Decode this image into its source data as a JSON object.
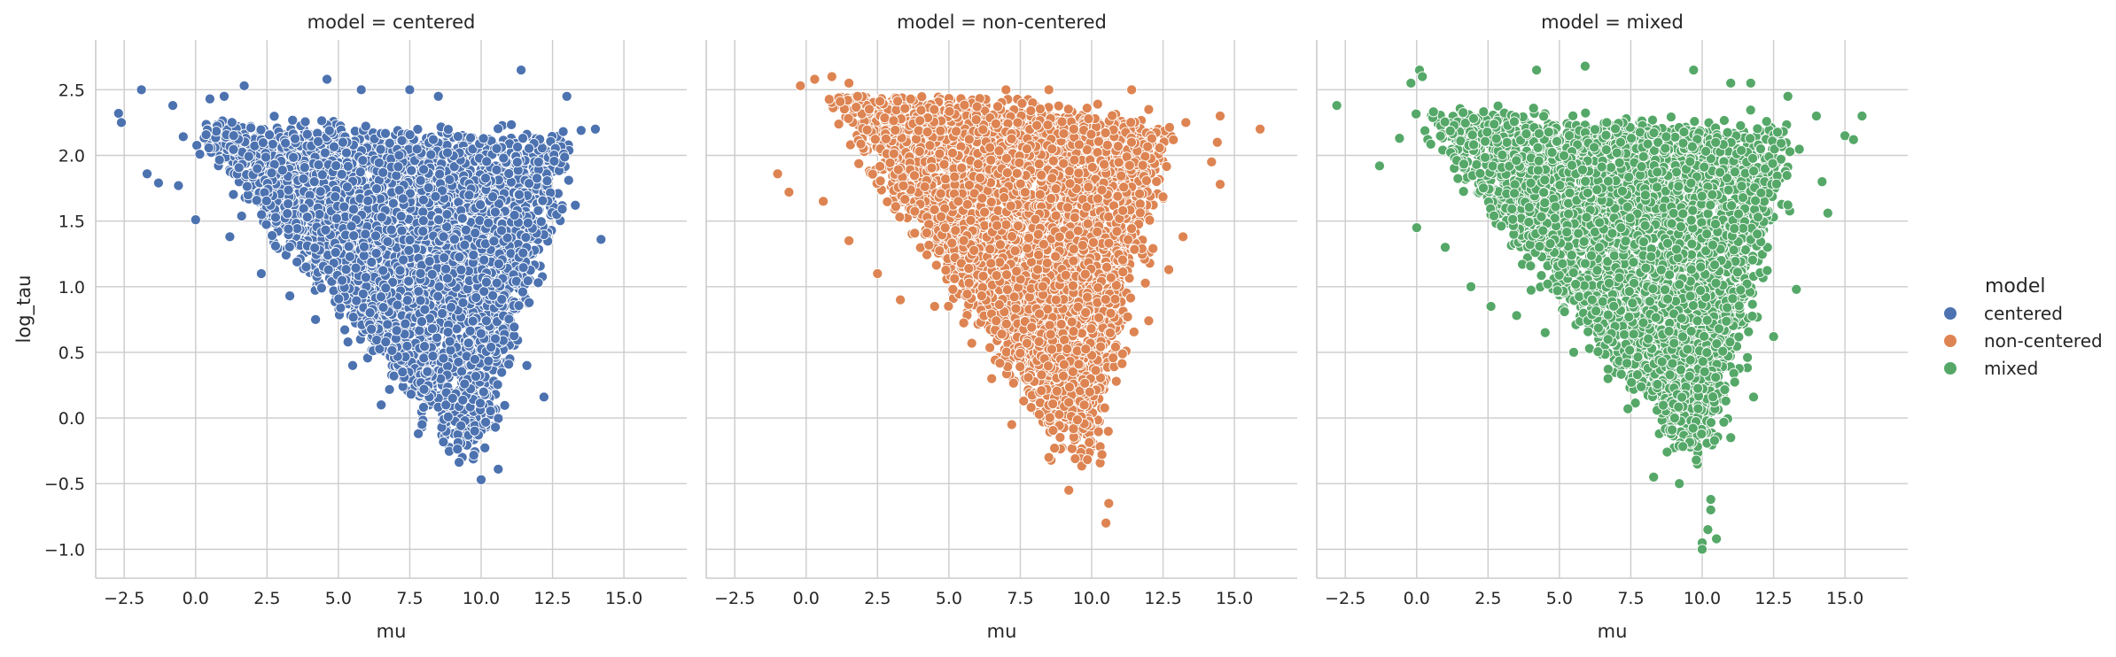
{
  "chart_data": {
    "type": "scatter",
    "facet_variable": "model",
    "panels": [
      {
        "title": "model = centered",
        "series": "centered",
        "xlabel": "mu",
        "ylabel": "log_tau",
        "xlim": [
          -3.5,
          17.2
        ],
        "ylim": [
          -1.22,
          2.88
        ],
        "xticks": [
          -2.5,
          0.0,
          2.5,
          5.0,
          7.5,
          10.0,
          12.5,
          15.0
        ],
        "yticks": [
          -1.0,
          -0.5,
          0.0,
          0.5,
          1.0,
          1.5,
          2.0,
          2.5
        ],
        "cloud": {
          "top_left": [
            0.0,
            2.2
          ],
          "top_right": [
            13.0,
            2.1
          ],
          "bottom": [
            9.6,
            -0.3
          ],
          "top_center_x": 7.0,
          "top_y": 2.45
        },
        "points": [
          [
            -2.7,
            2.32
          ],
          [
            -2.6,
            2.25
          ],
          [
            -1.9,
            2.5
          ],
          [
            -1.7,
            1.86
          ],
          [
            -1.3,
            1.79
          ],
          [
            -0.8,
            2.38
          ],
          [
            -0.6,
            1.77
          ],
          [
            0.0,
            1.51
          ],
          [
            0.5,
            2.43
          ],
          [
            1.0,
            2.45
          ],
          [
            1.7,
            2.53
          ],
          [
            4.6,
            2.58
          ],
          [
            5.8,
            2.5
          ],
          [
            7.5,
            2.5
          ],
          [
            8.5,
            2.45
          ],
          [
            11.4,
            2.65
          ],
          [
            13.0,
            2.45
          ],
          [
            13.5,
            2.19
          ],
          [
            14.0,
            2.2
          ],
          [
            14.2,
            1.36
          ],
          [
            13.3,
            1.62
          ],
          [
            12.0,
            1.03
          ],
          [
            11.6,
            0.4
          ],
          [
            12.2,
            0.16
          ],
          [
            10.6,
            -0.39
          ],
          [
            10.0,
            -0.47
          ],
          [
            10.5,
            -0.07
          ],
          [
            9.0,
            0.15
          ],
          [
            7.8,
            -0.12
          ],
          [
            6.5,
            0.1
          ],
          [
            5.5,
            0.4
          ],
          [
            4.2,
            0.75
          ],
          [
            3.3,
            0.93
          ],
          [
            2.3,
            1.1
          ],
          [
            1.2,
            1.38
          ]
        ]
      },
      {
        "title": "model = non-centered",
        "series": "non-centered",
        "xlabel": "mu",
        "ylabel": "",
        "xlim": [
          -3.5,
          17.2
        ],
        "ylim": [
          -1.22,
          2.88
        ],
        "xticks": [
          -2.5,
          0.0,
          2.5,
          5.0,
          7.5,
          10.0,
          12.5,
          15.0
        ],
        "yticks": [
          -1.0,
          -0.5,
          0.0,
          0.5,
          1.0,
          1.5,
          2.0,
          2.5
        ],
        "cloud": {
          "top_left": [
            0.8,
            2.55
          ],
          "top_right": [
            12.5,
            2.2
          ],
          "bottom": [
            9.7,
            -0.4
          ],
          "top_center_x": 6.5,
          "top_y": 2.45
        },
        "points": [
          [
            -1.0,
            1.86
          ],
          [
            -0.6,
            1.72
          ],
          [
            -0.2,
            2.53
          ],
          [
            0.3,
            2.58
          ],
          [
            0.9,
            2.6
          ],
          [
            1.5,
            2.55
          ],
          [
            1.8,
            2.45
          ],
          [
            7.0,
            2.5
          ],
          [
            8.5,
            2.5
          ],
          [
            11.4,
            2.5
          ],
          [
            12.0,
            2.35
          ],
          [
            13.3,
            2.25
          ],
          [
            14.5,
            2.3
          ],
          [
            14.4,
            2.1
          ],
          [
            15.9,
            2.2
          ],
          [
            14.2,
            1.95
          ],
          [
            14.5,
            1.78
          ],
          [
            13.2,
            1.38
          ],
          [
            12.7,
            1.13
          ],
          [
            12.0,
            0.74
          ],
          [
            10.6,
            -0.65
          ],
          [
            10.5,
            -0.8
          ],
          [
            9.2,
            -0.55
          ],
          [
            8.5,
            -0.3
          ],
          [
            7.2,
            -0.05
          ],
          [
            6.5,
            0.3
          ],
          [
            5.8,
            0.57
          ],
          [
            4.5,
            0.85
          ],
          [
            3.3,
            0.9
          ],
          [
            2.5,
            1.1
          ],
          [
            1.5,
            1.35
          ],
          [
            0.6,
            1.65
          ]
        ]
      },
      {
        "title": "model = mixed",
        "series": "mixed",
        "xlabel": "mu",
        "ylabel": "",
        "xlim": [
          -3.5,
          17.2
        ],
        "ylim": [
          -1.22,
          2.88
        ],
        "xticks": [
          -2.5,
          0.0,
          2.5,
          5.0,
          7.5,
          10.0,
          12.5,
          15.0
        ],
        "yticks": [
          -1.0,
          -0.5,
          0.0,
          0.5,
          1.0,
          1.5,
          2.0,
          2.5
        ],
        "cloud": {
          "top_left": [
            0.3,
            2.3
          ],
          "top_right": [
            13.0,
            2.15
          ],
          "bottom": [
            9.9,
            -0.35
          ],
          "top_center_x": 6.5,
          "top_y": 2.45
        },
        "points": [
          [
            -2.8,
            2.38
          ],
          [
            -1.3,
            1.92
          ],
          [
            -0.6,
            2.13
          ],
          [
            -0.2,
            2.55
          ],
          [
            0.1,
            2.65
          ],
          [
            0.2,
            2.6
          ],
          [
            0.0,
            1.45
          ],
          [
            4.2,
            2.65
          ],
          [
            5.9,
            2.68
          ],
          [
            9.7,
            2.65
          ],
          [
            11.0,
            2.55
          ],
          [
            11.7,
            2.55
          ],
          [
            13.0,
            2.45
          ],
          [
            14.0,
            2.3
          ],
          [
            15.0,
            2.15
          ],
          [
            15.6,
            2.3
          ],
          [
            15.3,
            2.12
          ],
          [
            14.4,
            1.56
          ],
          [
            14.2,
            1.8
          ],
          [
            13.3,
            0.98
          ],
          [
            12.5,
            0.62
          ],
          [
            11.8,
            0.16
          ],
          [
            11.0,
            -0.15
          ],
          [
            10.3,
            -0.62
          ],
          [
            10.3,
            -0.7
          ],
          [
            10.2,
            -0.85
          ],
          [
            10.5,
            -0.92
          ],
          [
            10.0,
            -0.95
          ],
          [
            10.0,
            -1.0
          ],
          [
            9.2,
            -0.5
          ],
          [
            8.3,
            -0.45
          ],
          [
            7.4,
            0.07
          ],
          [
            6.7,
            0.3
          ],
          [
            5.5,
            0.5
          ],
          [
            4.5,
            0.65
          ],
          [
            3.5,
            0.78
          ],
          [
            2.6,
            0.85
          ],
          [
            1.9,
            1.0
          ],
          [
            1.0,
            1.3
          ]
        ]
      }
    ],
    "legend": {
      "title": "model",
      "placement": "right",
      "entries": [
        "centered",
        "non-centered",
        "mixed"
      ]
    },
    "colors": {
      "centered": "#4c72b0",
      "non-centered": "#dd8452",
      "mixed": "#55a868"
    },
    "density_points_per_panel": 3800,
    "grid": true
  }
}
